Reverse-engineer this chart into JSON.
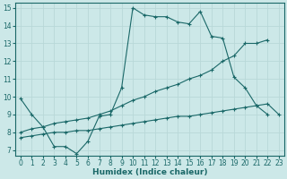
{
  "xlabel": "Humidex (Indice chaleur)",
  "bg_color": "#cce8e8",
  "grid_color": "#b8d8d8",
  "line_color": "#1a6868",
  "xlim": [
    -0.5,
    23.5
  ],
  "ylim": [
    6.7,
    15.3
  ],
  "xticks": [
    0,
    1,
    2,
    3,
    4,
    5,
    6,
    7,
    8,
    9,
    10,
    11,
    12,
    13,
    14,
    15,
    16,
    17,
    18,
    19,
    20,
    21,
    22,
    23
  ],
  "yticks": [
    7,
    8,
    9,
    10,
    11,
    12,
    13,
    14,
    15
  ],
  "series": [
    {
      "x": [
        0,
        1,
        2,
        3,
        4,
        5,
        6,
        7,
        8,
        9,
        10,
        11,
        12,
        13,
        14,
        15,
        16,
        17,
        18,
        19,
        20,
        21,
        22
      ],
      "y": [
        9.9,
        9.0,
        8.3,
        7.2,
        7.2,
        6.8,
        7.5,
        8.9,
        9.0,
        10.5,
        15.0,
        14.6,
        14.5,
        14.5,
        14.2,
        14.1,
        14.8,
        13.4,
        13.3,
        11.1,
        10.5,
        9.5,
        9.0
      ]
    },
    {
      "x": [
        0,
        1,
        2,
        3,
        4,
        5,
        6,
        7,
        8,
        9,
        10,
        11,
        12,
        13,
        14,
        15,
        16,
        17,
        18,
        19,
        20,
        21,
        22
      ],
      "y": [
        8.0,
        8.2,
        8.3,
        8.5,
        8.6,
        8.7,
        8.8,
        9.0,
        9.2,
        9.5,
        9.8,
        10.0,
        10.3,
        10.5,
        10.7,
        11.0,
        11.2,
        11.5,
        12.0,
        12.3,
        13.0,
        13.0,
        13.2
      ]
    },
    {
      "x": [
        0,
        1,
        2,
        3,
        4,
        5,
        6,
        7,
        8,
        9,
        10,
        11,
        12,
        13,
        14,
        15,
        16,
        17,
        18,
        19,
        20,
        21,
        22,
        23
      ],
      "y": [
        7.7,
        7.8,
        7.9,
        8.0,
        8.0,
        8.1,
        8.1,
        8.2,
        8.3,
        8.4,
        8.5,
        8.6,
        8.7,
        8.8,
        8.9,
        8.9,
        9.0,
        9.1,
        9.2,
        9.3,
        9.4,
        9.5,
        9.6,
        9.0
      ]
    }
  ]
}
